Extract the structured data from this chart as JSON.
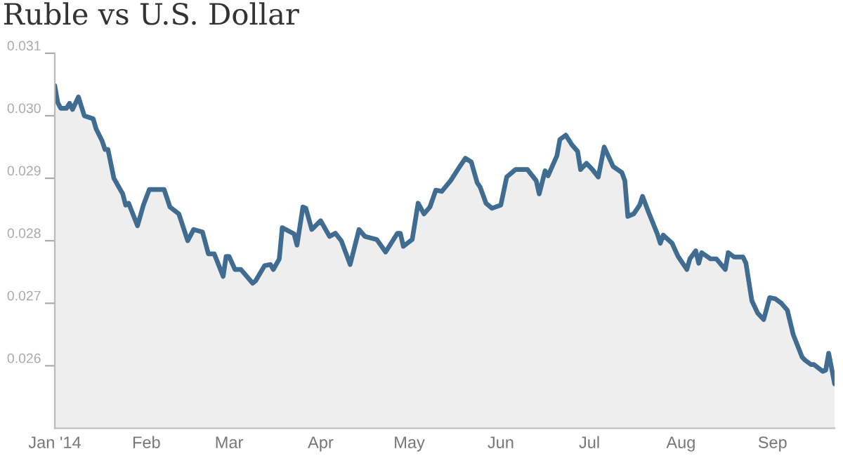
{
  "chart_data": {
    "type": "area",
    "title": "Ruble vs U.S. Dollar",
    "x": [
      "2014-01-01",
      "2014-01-02",
      "2014-01-03",
      "2014-01-05",
      "2014-01-06",
      "2014-01-07",
      "2014-01-09",
      "2014-01-11",
      "2014-01-14",
      "2014-01-15",
      "2014-01-17",
      "2014-01-18",
      "2014-01-19",
      "2014-01-21",
      "2014-01-24",
      "2014-01-25",
      "2014-01-26",
      "2014-01-29",
      "2014-01-31",
      "2014-02-02",
      "2014-02-07",
      "2014-02-09",
      "2014-02-12",
      "2014-02-15",
      "2014-02-17",
      "2014-02-20",
      "2014-02-22",
      "2014-02-24",
      "2014-02-27",
      "2014-02-28",
      "2014-03-01",
      "2014-03-03",
      "2014-03-05",
      "2014-03-09",
      "2014-03-10",
      "2014-03-13",
      "2014-03-15",
      "2014-03-16",
      "2014-03-18",
      "2014-03-19",
      "2014-03-23",
      "2014-03-24",
      "2014-03-26",
      "2014-03-27",
      "2014-03-29",
      "2014-04-01",
      "2014-04-04",
      "2014-04-06",
      "2014-04-08",
      "2014-04-11",
      "2014-04-14",
      "2014-04-16",
      "2014-04-20",
      "2014-04-23",
      "2014-04-27",
      "2014-04-28",
      "2014-04-29",
      "2014-05-02",
      "2014-05-04",
      "2014-05-06",
      "2014-05-08",
      "2014-05-10",
      "2014-05-12",
      "2014-05-15",
      "2014-05-18",
      "2014-05-20",
      "2014-05-22",
      "2014-05-24",
      "2014-05-25",
      "2014-05-27",
      "2014-05-29",
      "2014-06-01",
      "2014-06-03",
      "2014-06-06",
      "2014-06-10",
      "2014-06-13",
      "2014-06-14",
      "2014-06-16",
      "2014-06-17",
      "2014-06-20",
      "2014-06-21",
      "2014-06-23",
      "2014-06-25",
      "2014-06-27",
      "2014-06-28",
      "2014-06-30",
      "2014-07-02",
      "2014-07-04",
      "2014-07-06",
      "2014-07-09",
      "2014-07-12",
      "2014-07-13",
      "2014-07-14",
      "2014-07-16",
      "2014-07-18",
      "2014-07-19",
      "2014-07-21",
      "2014-07-24",
      "2014-07-25",
      "2014-07-26",
      "2014-07-29",
      "2014-07-31",
      "2014-08-03",
      "2014-08-04",
      "2014-08-06",
      "2014-08-07",
      "2014-08-08",
      "2014-08-11",
      "2014-08-13",
      "2014-08-16",
      "2014-08-17",
      "2014-08-19",
      "2014-08-22",
      "2014-08-23",
      "2014-08-25",
      "2014-08-27",
      "2014-08-29",
      "2014-08-31",
      "2014-09-02",
      "2014-09-04",
      "2014-09-06",
      "2014-09-08",
      "2014-09-11",
      "2014-09-12",
      "2014-09-14",
      "2014-09-15",
      "2014-09-18",
      "2014-09-19",
      "2014-09-20",
      "2014-09-21",
      "2014-09-22"
    ],
    "series": [
      {
        "color": "#3f6c90",
        "values": [
          0.03048,
          0.03021,
          0.03012,
          0.03012,
          0.0302,
          0.0301,
          0.0303,
          0.03,
          0.02995,
          0.02979,
          0.0296,
          0.02946,
          0.02946,
          0.029,
          0.02875,
          0.02857,
          0.0286,
          0.02824,
          0.02857,
          0.02882,
          0.02882,
          0.02854,
          0.02843,
          0.028,
          0.02818,
          0.02814,
          0.02779,
          0.02779,
          0.02743,
          0.02775,
          0.02775,
          0.02754,
          0.02754,
          0.02732,
          0.02736,
          0.0276,
          0.02762,
          0.02754,
          0.02771,
          0.02821,
          0.02811,
          0.02793,
          0.02854,
          0.02852,
          0.02818,
          0.02832,
          0.02807,
          0.02812,
          0.028,
          0.02762,
          0.02818,
          0.02807,
          0.02802,
          0.02782,
          0.02812,
          0.02812,
          0.02791,
          0.02802,
          0.0286,
          0.02843,
          0.02854,
          0.02881,
          0.02879,
          0.02896,
          0.02918,
          0.02932,
          0.02926,
          0.02893,
          0.02886,
          0.0286,
          0.02852,
          0.02857,
          0.02902,
          0.02914,
          0.02914,
          0.02896,
          0.02875,
          0.02912,
          0.02904,
          0.02936,
          0.02962,
          0.02969,
          0.02954,
          0.02943,
          0.02914,
          0.02924,
          0.02914,
          0.02902,
          0.0295,
          0.02919,
          0.02909,
          0.02896,
          0.02839,
          0.02843,
          0.02857,
          0.02871,
          0.02846,
          0.02811,
          0.02796,
          0.02809,
          0.02796,
          0.02775,
          0.02754,
          0.02771,
          0.02784,
          0.02764,
          0.02781,
          0.02771,
          0.02771,
          0.02754,
          0.02781,
          0.02774,
          0.02774,
          0.02764,
          0.02704,
          0.02684,
          0.02674,
          0.02709,
          0.02707,
          0.027,
          0.02689,
          0.0265,
          0.02614,
          0.02609,
          0.02602,
          0.02602,
          0.02591,
          0.02593,
          0.0262,
          0.02596,
          0.02571
        ]
      }
    ],
    "xlim": [
      "2014-01-01",
      "2014-09-22"
    ],
    "xticks": [
      {
        "value": "2014-01-01",
        "label": "Jan '14"
      },
      {
        "value": "2014-02-01",
        "label": "Feb"
      },
      {
        "value": "2014-03-01",
        "label": "Mar"
      },
      {
        "value": "2014-04-01",
        "label": "Apr"
      },
      {
        "value": "2014-05-01",
        "label": "May"
      },
      {
        "value": "2014-06-01",
        "label": "Jun"
      },
      {
        "value": "2014-07-01",
        "label": "Jul"
      },
      {
        "value": "2014-08-01",
        "label": "Aug"
      },
      {
        "value": "2014-09-01",
        "label": "Sep"
      }
    ],
    "ylim": [
      0.025,
      0.031
    ],
    "yticks": [
      0.026,
      0.027,
      0.028,
      0.029,
      {
        "value": 0.03,
        "label": "0.030"
      },
      {
        "value": 0.031,
        "label": "0.031"
      }
    ],
    "grid": false,
    "legend": false
  }
}
